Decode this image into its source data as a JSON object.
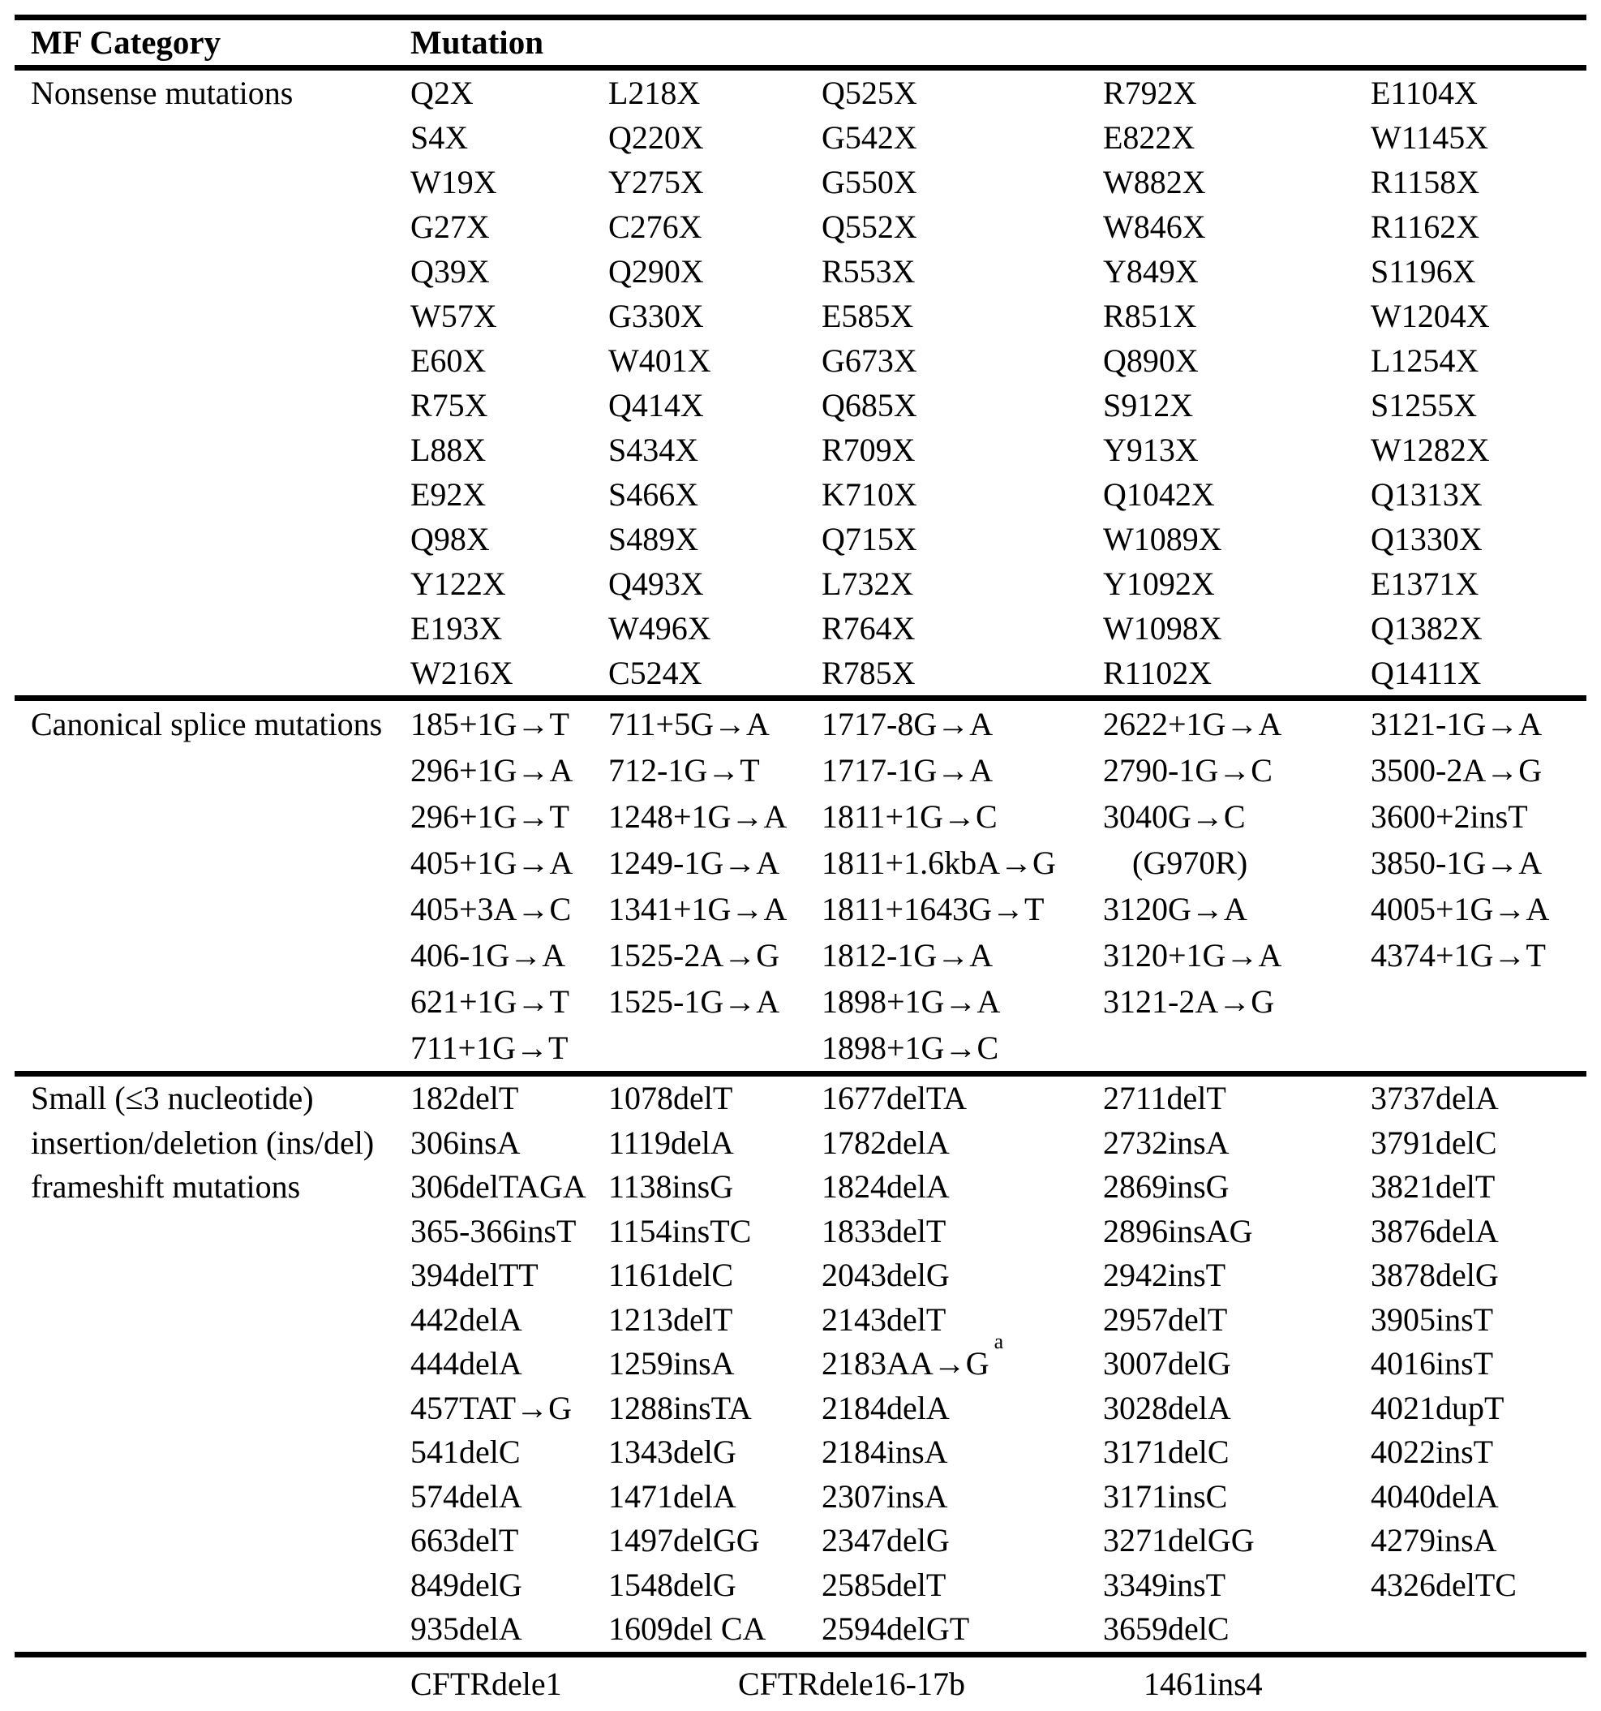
{
  "table": {
    "header": {
      "category": "MF Category",
      "mutation": "Mutation"
    },
    "sections": [
      {
        "category_lines": [
          "Nonsense mutations"
        ],
        "rows": [
          [
            "Q2X",
            "L218X",
            "Q525X",
            "R792X",
            "E1104X"
          ],
          [
            "S4X",
            "Q220X",
            "G542X",
            "E822X",
            "W1145X"
          ],
          [
            "W19X",
            "Y275X",
            "G550X",
            "W882X",
            "R1158X"
          ],
          [
            "G27X",
            "C276X",
            "Q552X",
            "W846X",
            "R1162X"
          ],
          [
            "Q39X",
            "Q290X",
            "R553X",
            "Y849X",
            "S1196X"
          ],
          [
            "W57X",
            "G330X",
            "E585X",
            "R851X",
            "W1204X"
          ],
          [
            "E60X",
            "W401X",
            "G673X",
            "Q890X",
            "L1254X"
          ],
          [
            "R75X",
            "Q414X",
            "Q685X",
            "S912X",
            "S1255X"
          ],
          [
            "L88X",
            "S434X",
            "R709X",
            "Y913X",
            "W1282X"
          ],
          [
            "E92X",
            "S466X",
            "K710X",
            "Q1042X",
            "Q1313X"
          ],
          [
            "Q98X",
            "S489X",
            "Q715X",
            "W1089X",
            "Q1330X"
          ],
          [
            "Y122X",
            "Q493X",
            "L732X",
            "Y1092X",
            "E1371X"
          ],
          [
            "E193X",
            "W496X",
            "R764X",
            "W1098X",
            "Q1382X"
          ],
          [
            "W216X",
            "C524X",
            "R785X",
            "R1102X",
            "Q1411X"
          ]
        ]
      },
      {
        "category_lines": [
          "Canonical splice mutations"
        ],
        "rows": [
          [
            "185+1G→T",
            "711+5G→A",
            "1717-8G→A",
            "2622+1G→A",
            "3121-1G→A"
          ],
          [
            "296+1G→A",
            "712-1G→T",
            "1717-1G→A",
            "2790-1G→C",
            "3500-2A→G"
          ],
          [
            "296+1G→T",
            "1248+1G→A",
            "1811+1G→C",
            "3040G→C",
            "3600+2insT"
          ],
          [
            "405+1G→A",
            "1249-1G→A",
            "1811+1.6kbA→G",
            {
              "text": "(G970R)",
              "indent": true
            },
            "3850-1G→A"
          ],
          [
            "405+3A→C",
            "1341+1G→A",
            "1811+1643G→T",
            "3120G→A",
            "4005+1G→A"
          ],
          [
            "406-1G→A",
            "1525-2A→G",
            "1812-1G→A",
            "3120+1G→A",
            "4374+1G→T"
          ],
          [
            "621+1G→T",
            "1525-1G→A",
            "1898+1G→A",
            "3121-2A→G",
            ""
          ],
          [
            "711+1G→T",
            "",
            "1898+1G→C",
            "",
            ""
          ]
        ]
      },
      {
        "category_lines": [
          "Small (≤3 nucleotide)",
          "insertion/deletion (ins/del)",
          "frameshift mutations"
        ],
        "rows": [
          [
            "182delT",
            "1078delT",
            "1677delTA",
            "2711delT",
            "3737delA"
          ],
          [
            "306insA",
            "1119delA",
            "1782delA",
            "2732insA",
            "3791delC"
          ],
          [
            "306delTAGA",
            "1138insG",
            "1824delA",
            "2869insG",
            "3821delT"
          ],
          [
            "365-366insT",
            "1154insTC",
            "1833delT",
            "2896insAG",
            "3876delA"
          ],
          [
            "394delTT",
            "1161delC",
            "2043delG",
            "2942insT",
            "3878delG"
          ],
          [
            "442delA",
            "1213delT",
            "2143delT",
            "2957delT",
            "3905insT"
          ],
          [
            "444delA",
            "1259insA",
            "2183AA→G^a",
            "3007delG",
            "4016insT"
          ],
          [
            "457TAT→G",
            "1288insTA",
            "2184delA",
            "3028delA",
            "4021dupT"
          ],
          [
            "541delC",
            "1343delG",
            "2184insA",
            "3171delC",
            "4022insT"
          ],
          [
            "574delA",
            "1471delA",
            "2307insA",
            "3171insC",
            "4040delA"
          ],
          [
            "663delT",
            "1497delGG",
            "2347delG",
            "3271delGG",
            "4279insA"
          ],
          [
            "849delG",
            "1548delG",
            "2585delT",
            "3349insT",
            "4326delTC"
          ],
          [
            "935delA",
            "1609del CA",
            "2594delGT",
            "3659delC",
            ""
          ]
        ]
      }
    ],
    "footer_row": [
      "CFTRdele1",
      "CFTRdele16-17b",
      "1461ins4"
    ]
  }
}
